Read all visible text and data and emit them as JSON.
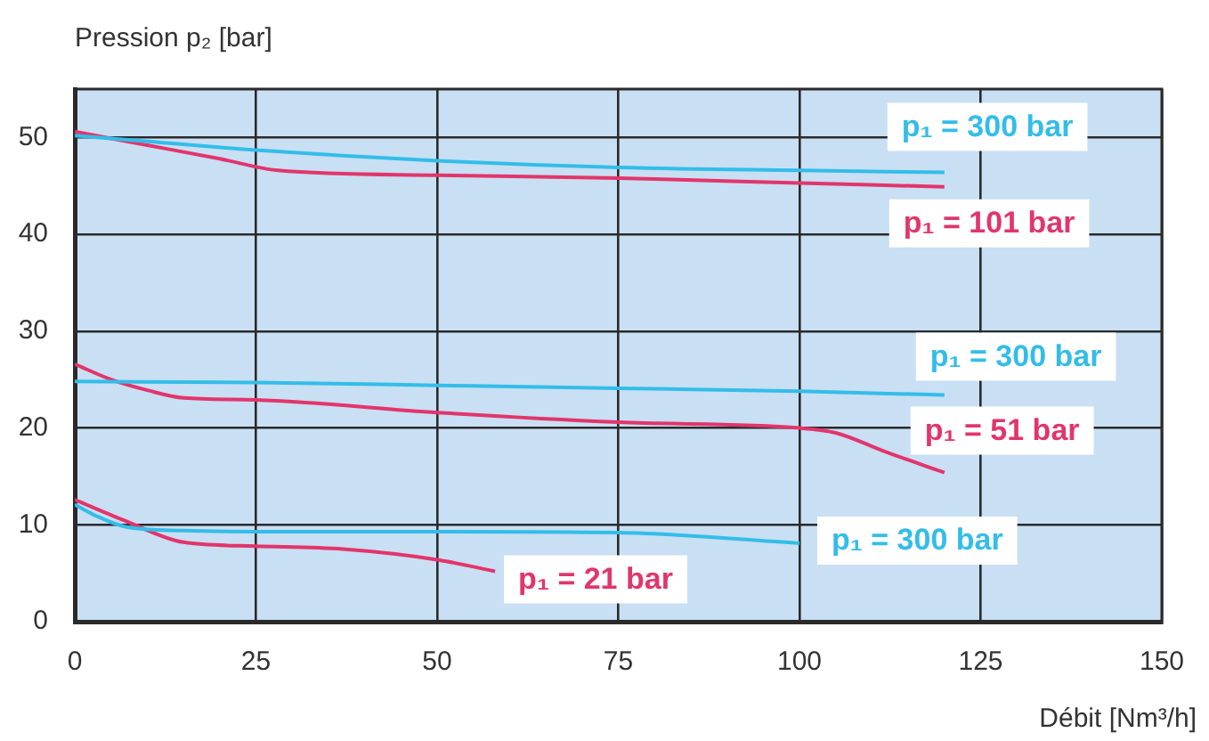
{
  "chart_data": {
    "type": "line",
    "xlabel": "Débit [Nm³/h]",
    "ylabel": "Pression p₂ [bar]",
    "xlim": [
      0,
      150
    ],
    "ylim": [
      0,
      55
    ],
    "xticks": [
      0,
      25,
      50,
      75,
      100,
      125,
      150
    ],
    "yticks": [
      0,
      10,
      20,
      30,
      40,
      50
    ],
    "grid": true,
    "legend": false,
    "marker": "none",
    "line_style": "solid",
    "series": [
      {
        "name": "p₁ = 300 bar",
        "color": "#33bde9",
        "x": [
          0,
          10,
          25,
          50,
          75,
          100,
          120
        ],
        "values": [
          50.2,
          49.6,
          48.7,
          47.6,
          46.9,
          46.6,
          46.4
        ]
      },
      {
        "name": "p₁ = 101 bar",
        "color": "#e2356c",
        "x": [
          0,
          10,
          20,
          28,
          50,
          75,
          100,
          120
        ],
        "values": [
          50.6,
          49.2,
          47.8,
          46.6,
          46.1,
          45.8,
          45.3,
          44.9
        ]
      },
      {
        "name": "p₁ = 300 bar",
        "color": "#33bde9",
        "x": [
          0,
          25,
          50,
          75,
          100,
          120
        ],
        "values": [
          24.8,
          24.7,
          24.4,
          24.1,
          23.8,
          23.4
        ]
      },
      {
        "name": "p₁ = 51 bar",
        "color": "#e2356c",
        "x": [
          0,
          5,
          10,
          15,
          25,
          50,
          75,
          100,
          105,
          112,
          120
        ],
        "values": [
          26.6,
          25.0,
          23.9,
          23.1,
          22.9,
          21.6,
          20.6,
          20.0,
          19.5,
          17.5,
          15.4
        ]
      },
      {
        "name": "p₁ = 300 bar",
        "color": "#33bde9",
        "x": [
          0,
          3,
          7,
          15,
          25,
          50,
          75,
          100
        ],
        "values": [
          12.1,
          10.9,
          9.8,
          9.4,
          9.3,
          9.3,
          9.2,
          8.1
        ]
      },
      {
        "name": "p₁ = 21 bar",
        "color": "#e2356c",
        "x": [
          0,
          7,
          15,
          25,
          37,
          50,
          58
        ],
        "values": [
          12.6,
          10.4,
          8.2,
          7.8,
          7.5,
          6.4,
          5.2
        ]
      }
    ]
  }
}
